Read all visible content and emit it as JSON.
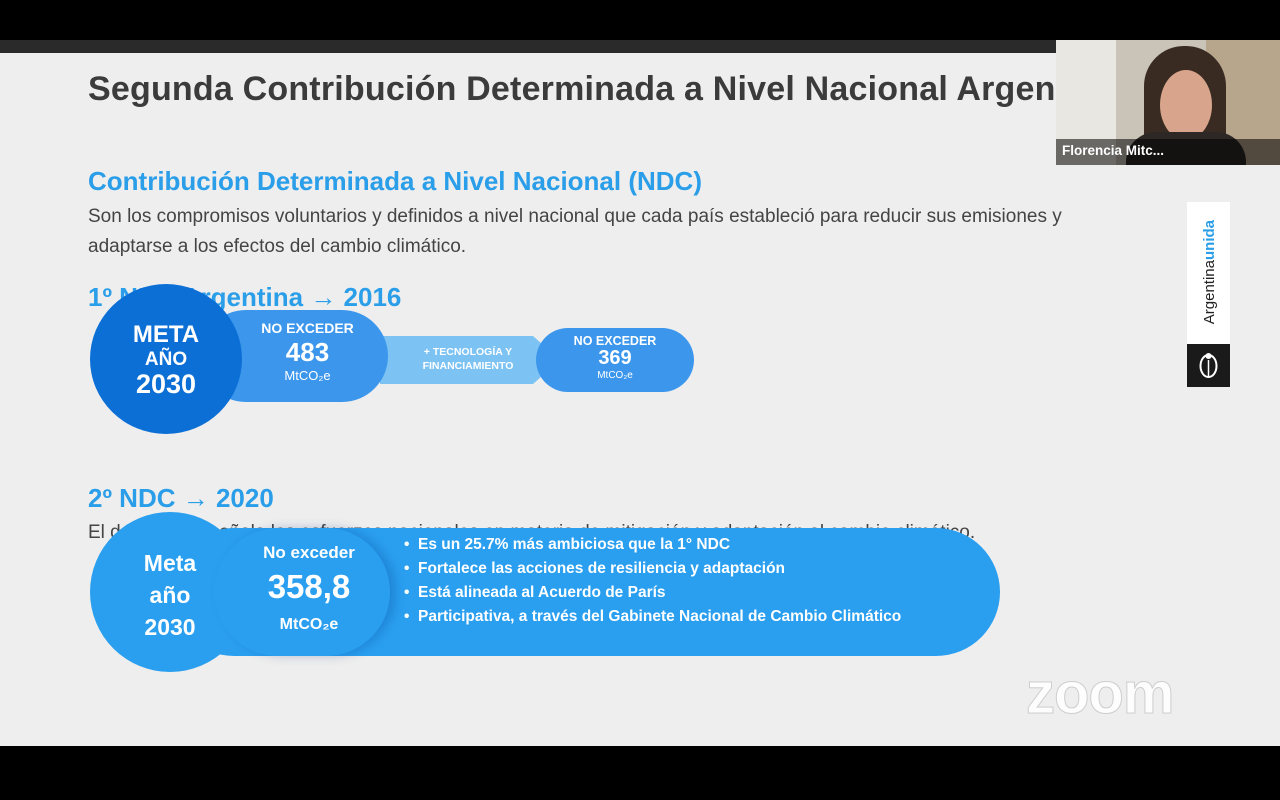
{
  "slide": {
    "title": "Segunda Contribución Determinada a Nivel Nacional Argentina",
    "ndc_heading": "Contribución Determinada a Nivel Nacional (NDC)",
    "ndc_description": "Son los compromisos voluntarios y definidos a nivel nacional que cada país estableció para reducir sus emisiones y adaptarse a los efectos del cambio climático.",
    "first_ndc": {
      "heading": "1º NDC Argentina → 2016",
      "meta_line1": "META",
      "meta_line2": "AÑO",
      "meta_line3": "2030",
      "limit_label": "NO EXCEDER",
      "limit_value": "483",
      "limit_unit": "MtCO₂e",
      "condition": "+ TECNOLOGÍA Y FINANCIAMIENTO",
      "conditional_label": "NO EXCEDER",
      "conditional_value": "369",
      "conditional_unit": "MtCO₂e"
    },
    "second_ndc": {
      "heading": "2º NDC → 2020",
      "description": "El documento señala los esfuerzos nacionales en materia de mitigación y adaptación al cambio climático.",
      "meta_text": "Meta año 2030",
      "limit_label": "No exceder",
      "limit_value": "358,8",
      "limit_unit": "MtCO₂e",
      "bullets": [
        "Es un 25.7% más ambiciosa que la 1° NDC",
        "Fortalece las acciones de resiliencia y adaptación",
        "Está alineada al Acuerdo de París",
        "Participativa, a través del Gabinete Nacional de Cambio Climático"
      ]
    },
    "brand": {
      "cut_text": "an",
      "name_part1": "Argentina",
      "name_part2": "unida"
    }
  },
  "zoom": {
    "watermark": "zoom",
    "participant_name": "Florencia Mitc..."
  },
  "colors": {
    "accent": "#2a9ee8",
    "dark_blue": "#0b6fd6",
    "band_blue": "#2a9ff0"
  }
}
